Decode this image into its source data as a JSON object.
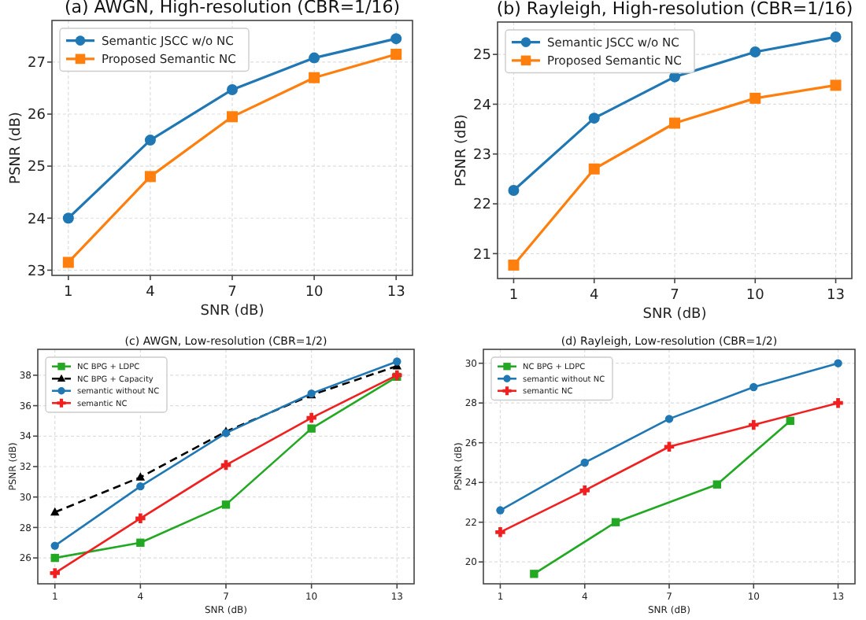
{
  "chart_data": [
    {
      "type": "line",
      "title": "(a) AWGN, High-resolution (CBR=1/16)",
      "xlabel": "SNR (dB)",
      "ylabel": "PSNR (dB)",
      "x": [
        1,
        4,
        7,
        10,
        13
      ],
      "xlim": [
        0.4,
        13.6
      ],
      "xticks": [
        1,
        4,
        7,
        10,
        13
      ],
      "ylim": [
        22.9,
        27.8
      ],
      "yticks": [
        23,
        24,
        25,
        26,
        27
      ],
      "grid": true,
      "legend": "top left",
      "series": [
        {
          "name": "Semantic JSCC w/o NC",
          "color": "#1f77b4",
          "marker": "circle",
          "values": [
            24.0,
            25.5,
            26.47,
            27.08,
            27.45
          ]
        },
        {
          "name": "Proposed Semantic NC",
          "color": "#ff7f0e",
          "marker": "square",
          "values": [
            23.15,
            24.8,
            25.95,
            26.7,
            27.15
          ]
        }
      ]
    },
    {
      "type": "line",
      "title": "(b) Rayleigh, High-resolution (CBR=1/16)",
      "xlabel": "SNR (dB)",
      "ylabel": "PSNR (dB)",
      "x": [
        1,
        4,
        7,
        10,
        13
      ],
      "xlim": [
        0.4,
        13.6
      ],
      "xticks": [
        1,
        4,
        7,
        10,
        13
      ],
      "ylim": [
        20.5,
        25.65
      ],
      "yticks": [
        21,
        22,
        23,
        24,
        25
      ],
      "grid": true,
      "legend": "top left",
      "series": [
        {
          "name": "Semantic JSCC w/o NC",
          "color": "#1f77b4",
          "marker": "circle",
          "values": [
            22.27,
            23.72,
            24.55,
            25.05,
            25.35
          ]
        },
        {
          "name": "Proposed Semantic NC",
          "color": "#ff7f0e",
          "marker": "square",
          "values": [
            20.77,
            22.7,
            23.62,
            24.12,
            24.38
          ]
        }
      ]
    },
    {
      "type": "line",
      "title": "(c) AWGN, Low-resolution (CBR=1/2)",
      "xlabel": "SNR (dB)",
      "ylabel": "PSNR (dB)",
      "x": [
        1,
        4,
        7,
        10,
        13
      ],
      "xlim": [
        0.4,
        13.6
      ],
      "xticks": [
        1,
        4,
        7,
        10,
        13
      ],
      "ylim": [
        24.3,
        39.7
      ],
      "yticks": [
        26,
        28,
        30,
        32,
        34,
        36,
        38
      ],
      "grid": true,
      "legend": "top left",
      "series": [
        {
          "name": "NC BPG + LDPC",
          "color": "#22a822",
          "marker": "square",
          "values": [
            26.0,
            27.0,
            29.5,
            34.5,
            37.9
          ]
        },
        {
          "name": "NC BPG + Capacity",
          "color": "#000000",
          "marker": "triangle",
          "line_style": "dashed",
          "values": [
            29.0,
            31.3,
            34.3,
            36.7,
            38.6
          ]
        },
        {
          "name": "semantic without NC",
          "color": "#1f77b4",
          "marker": "circle",
          "values": [
            26.8,
            30.7,
            34.2,
            36.8,
            38.9
          ]
        },
        {
          "name": "semantic NC",
          "color": "#f02020",
          "marker": "cross",
          "values": [
            25.0,
            28.6,
            32.1,
            35.2,
            38.0
          ]
        }
      ]
    },
    {
      "type": "line",
      "title": "(d) Rayleigh, Low-resolution (CBR=1/2)",
      "xlabel": "SNR (dB)",
      "ylabel": "PSNR (dB)",
      "x": [
        1,
        4,
        7,
        10,
        13
      ],
      "xlim": [
        0.4,
        13.6
      ],
      "xticks": [
        1,
        4,
        7,
        10,
        13
      ],
      "ylim": [
        18.9,
        30.7
      ],
      "yticks": [
        20,
        22,
        24,
        26,
        28,
        30
      ],
      "grid": true,
      "legend": "top left",
      "series": [
        {
          "name": "NC BPG + LDPC",
          "color": "#22a822",
          "marker": "square",
          "x": [
            2.2,
            5.1,
            8.7,
            11.3
          ],
          "values": [
            19.4,
            22.0,
            23.9,
            27.1
          ]
        },
        {
          "name": "semantic without NC",
          "color": "#1f77b4",
          "marker": "circle",
          "values": [
            22.6,
            25.0,
            27.2,
            28.8,
            30.0
          ]
        },
        {
          "name": "semantic NC",
          "color": "#f02020",
          "marker": "cross",
          "values": [
            21.5,
            23.6,
            25.8,
            26.9,
            28.0
          ]
        }
      ]
    }
  ]
}
